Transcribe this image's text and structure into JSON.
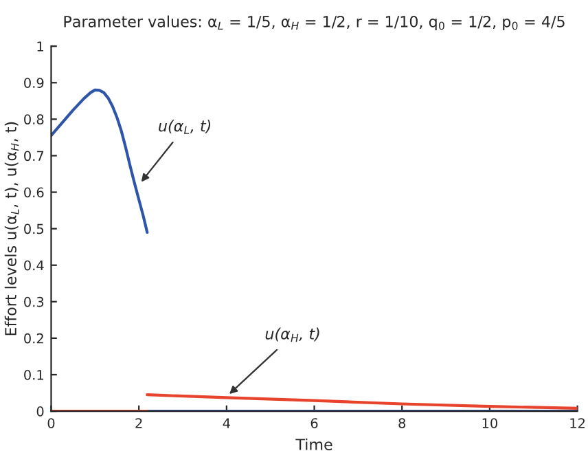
{
  "chart_data": {
    "type": "line",
    "title": "Parameter values: α$_{L}$ = 1/5, α$_{H}$ = 1/2, r = 1/10, q$_{0}$ = 1/2, p$_{0}$ = 4/5",
    "xlabel": "Time",
    "ylabel": "Effort levels u(α$_{L}$, t), u(α$_{H}$, t)",
    "series": [
      {
        "color": "#2f55a8",
        "x": [
          0,
          0.25,
          0.5,
          0.75,
          0.9,
          1.0,
          1.1,
          1.2,
          1.3,
          1.4,
          1.5,
          1.6,
          1.7,
          1.8,
          1.9,
          2.0,
          2.1,
          2.19
        ],
        "values": [
          0.755,
          0.79,
          0.825,
          0.857,
          0.873,
          0.88,
          0.879,
          0.873,
          0.858,
          0.835,
          0.805,
          0.768,
          0.722,
          0.672,
          0.625,
          0.58,
          0.535,
          0.49
        ]
      },
      {
        "color": "#2f55a8",
        "x": [
          2.19,
          12
        ],
        "values": [
          0,
          0
        ]
      },
      {
        "color": "#e8432c",
        "x": [
          0,
          2.19
        ],
        "values": [
          0,
          0
        ]
      },
      {
        "color": "#e8432c",
        "x": [
          2.19,
          4,
          6,
          8,
          10,
          12
        ],
        "values": [
          0.045,
          0.037,
          0.029,
          0.02,
          0.013,
          0.008
        ]
      }
    ],
    "annotations": [
      {
        "text": "u(α$_{L}$, t)",
        "x": 2.0,
        "y": 0.62
      },
      {
        "text": "u(α$_{H}$, t)",
        "x": 4,
        "y": 0.04
      }
    ],
    "xlim": [
      0,
      12
    ],
    "ylim": [
      0,
      1
    ],
    "xticks": [
      0,
      2,
      4,
      6,
      8,
      10,
      12
    ],
    "yticks": [
      0,
      0.1,
      0.2,
      0.3,
      0.4,
      0.5,
      0.6,
      0.7,
      0.8,
      0.9,
      1
    ],
    "grid": false
  }
}
